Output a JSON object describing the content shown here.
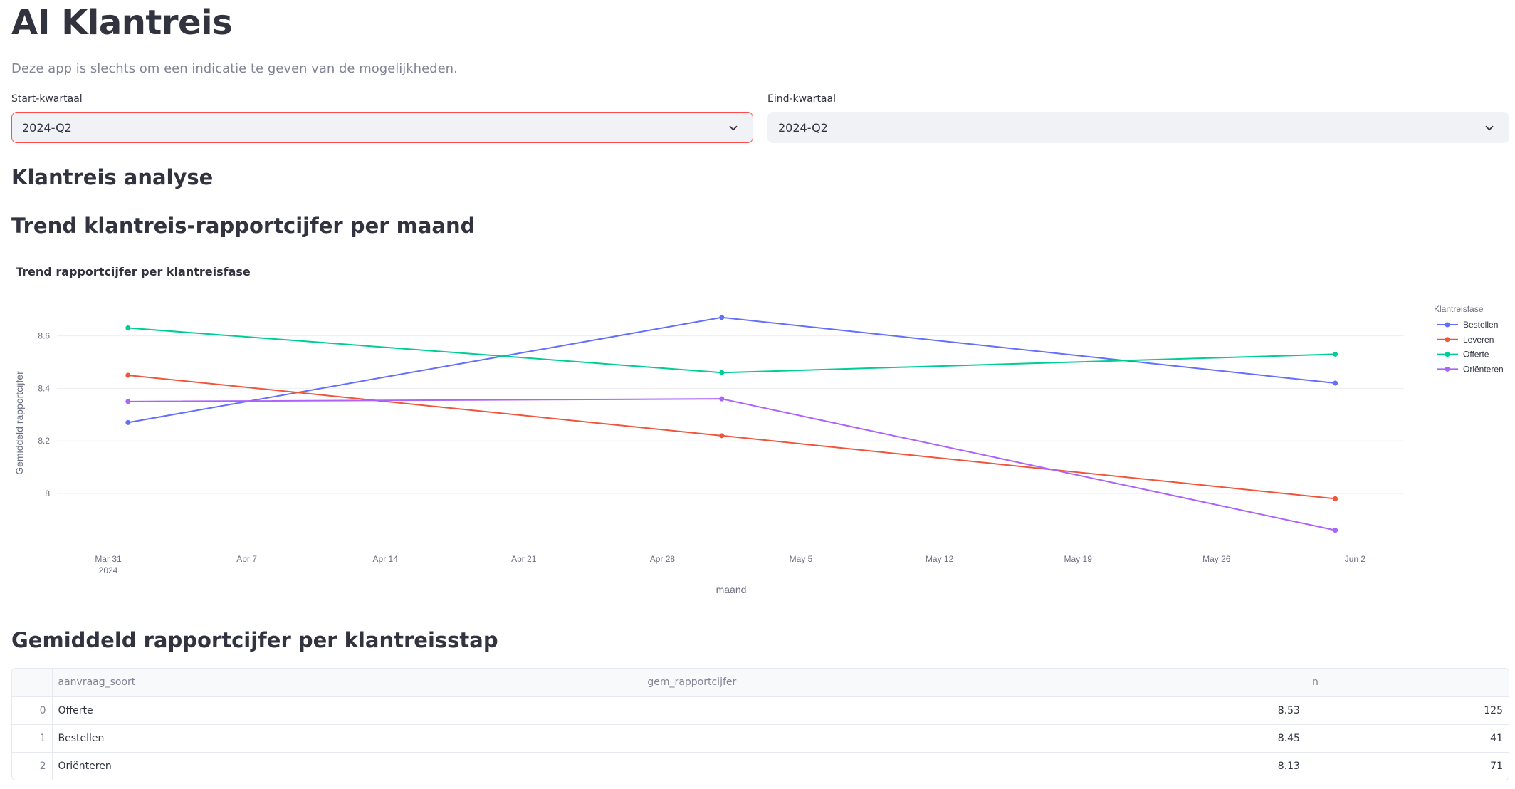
{
  "app": {
    "title": "AI Klantreis",
    "caption": "Deze app is slechts om een indicatie te geven van de mogelijkheden."
  },
  "filters": {
    "start": {
      "label": "Start-kwartaal",
      "value": "2024-Q2"
    },
    "end": {
      "label": "Eind-kwartaal",
      "value": "2024-Q2"
    }
  },
  "sections": {
    "analysis": "Klantreis analyse",
    "trend": "Trend klantreis-rapportcijfer per maand",
    "table": "Gemiddeld rapportcijfer per klantreisstap"
  },
  "chart_data": {
    "type": "line",
    "title": "Trend rapportcijfer per klantreisfase",
    "xlabel": "maand",
    "ylabel": "Gemiddeld rapportcijfer",
    "x": [
      "2024-04-01",
      "2024-05-01",
      "2024-06-01"
    ],
    "x_ticks": [
      "Mar 31",
      "Apr 7",
      "Apr 14",
      "Apr 21",
      "Apr 28",
      "May 5",
      "May 12",
      "May 19",
      "May 26",
      "Jun 2"
    ],
    "x_tick_sublabel": "2024",
    "y_ticks": [
      "8",
      "8.2",
      "8.4",
      "8.6"
    ],
    "grid": true,
    "legend_title": "Klantreisfase",
    "legend_position": "top-right",
    "series": [
      {
        "name": "Bestellen",
        "color": "#636efa",
        "values": [
          8.27,
          8.67,
          8.42
        ]
      },
      {
        "name": "Leveren",
        "color": "#ef553b",
        "values": [
          8.45,
          8.22,
          7.98
        ]
      },
      {
        "name": "Offerte",
        "color": "#00cc96",
        "values": [
          8.63,
          8.46,
          8.53
        ]
      },
      {
        "name": "Oriënteren",
        "color": "#ab63fa",
        "values": [
          8.35,
          8.36,
          7.86
        ]
      }
    ]
  },
  "table": {
    "columns": [
      "aanvraag_soort",
      "gem_rapportcijfer",
      "n"
    ],
    "rows": [
      {
        "index": "0",
        "aanvraag_soort": "Offerte",
        "gem_rapportcijfer": "8.53",
        "n": "125"
      },
      {
        "index": "1",
        "aanvraag_soort": "Bestellen",
        "gem_rapportcijfer": "8.45",
        "n": "41"
      },
      {
        "index": "2",
        "aanvraag_soort": "Oriënteren",
        "gem_rapportcijfer": "8.13",
        "n": "71"
      }
    ]
  }
}
